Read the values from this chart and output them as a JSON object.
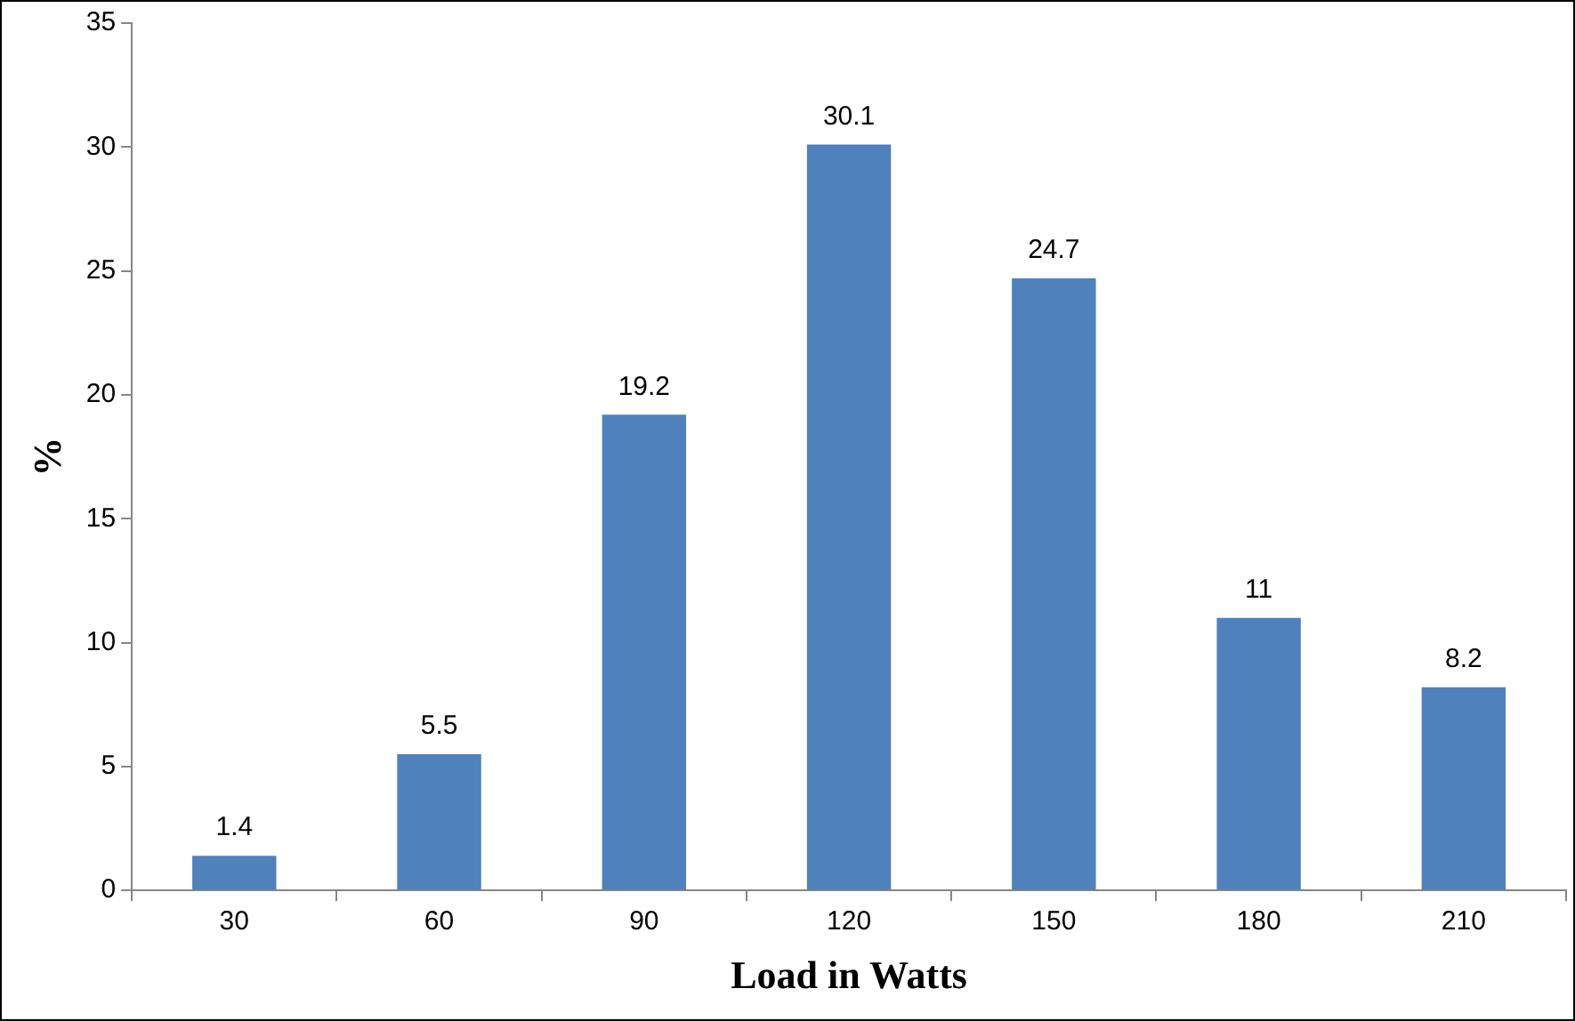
{
  "chart_data": {
    "type": "bar",
    "xlabel": "Load in Watts",
    "ylabel": "%",
    "categories": [
      "30",
      "60",
      "90",
      "120",
      "150",
      "180",
      "210"
    ],
    "values": [
      1.4,
      5.5,
      19.2,
      30.1,
      24.7,
      11,
      8.2
    ],
    "color": "#4f81bd",
    "ylim": [
      0,
      35
    ],
    "yticks": [
      0,
      5,
      10,
      15,
      20,
      25,
      30,
      35
    ],
    "grid": false,
    "legend": false,
    "data_labels": true
  }
}
